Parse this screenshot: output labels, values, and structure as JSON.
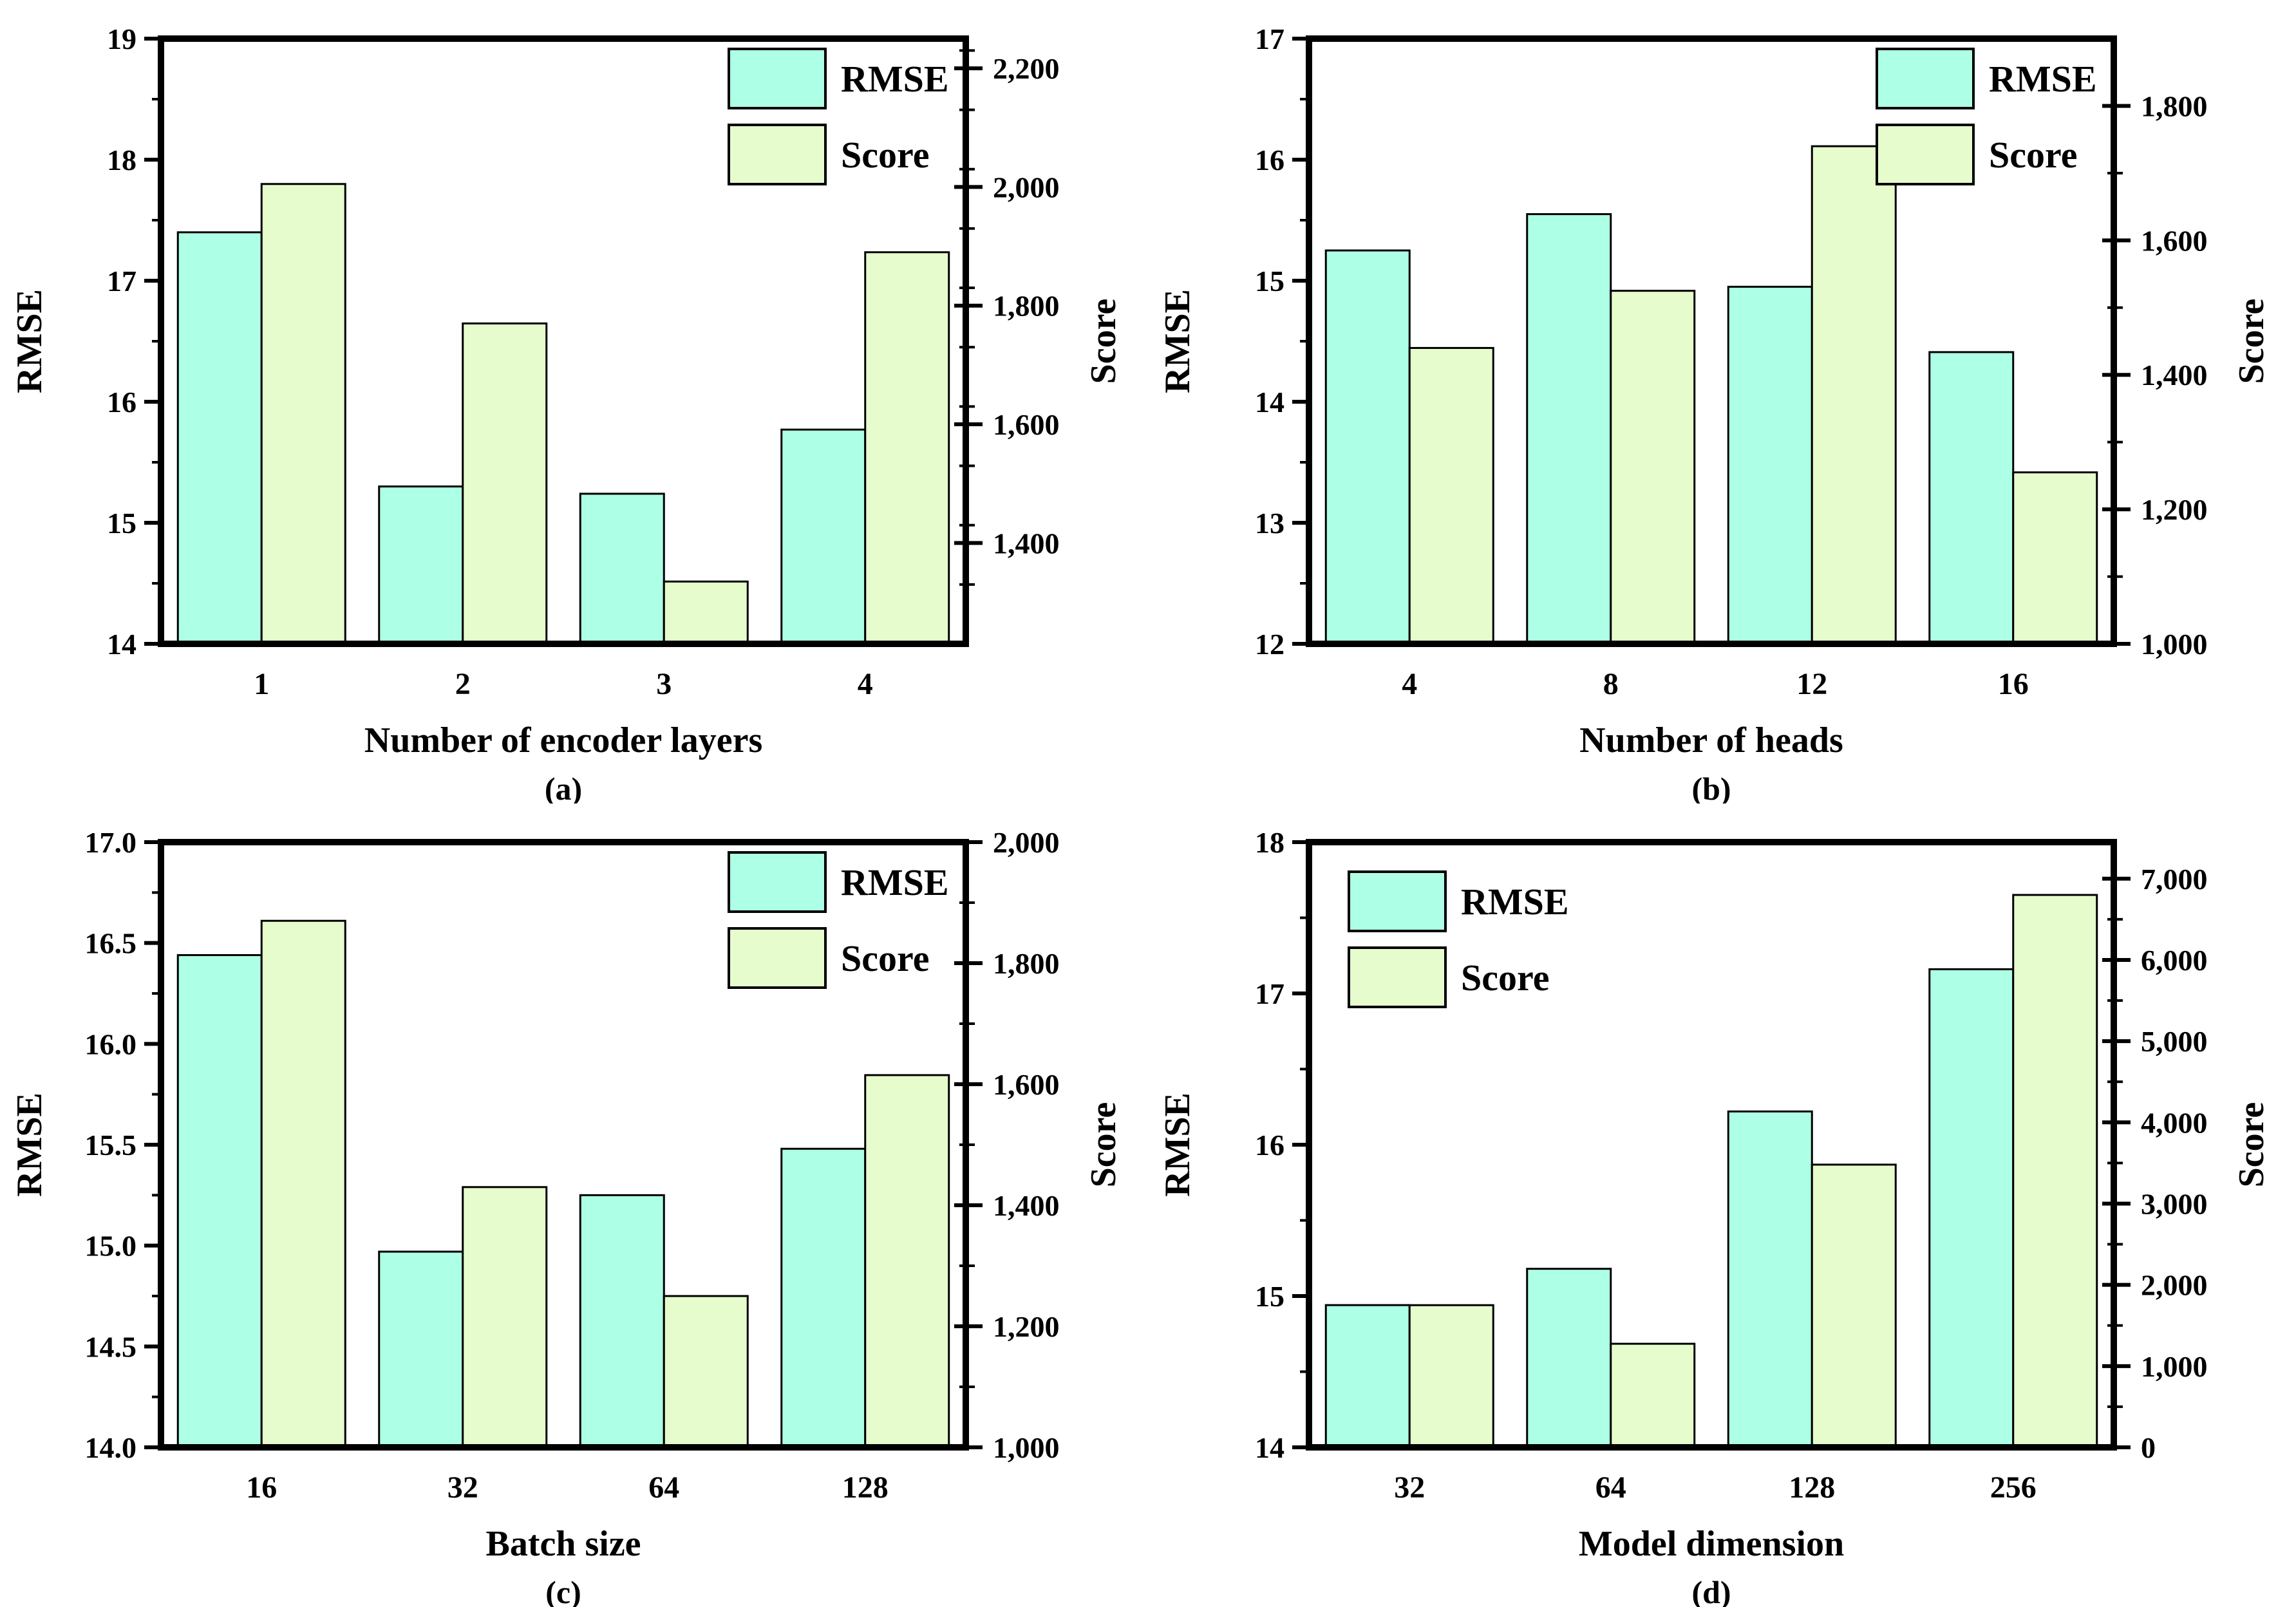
{
  "figure": {
    "background": "#ffffff",
    "colors": {
      "rmse_fill": "#adffe6",
      "score_fill": "#e6fccd",
      "bar_stroke": "#000000",
      "frame": "#000000",
      "text": "#000000"
    },
    "legend": {
      "rmse_label": "RMSE",
      "score_label": "Score"
    }
  },
  "chart_data": [
    {
      "id": "a",
      "type": "bar",
      "panel_label": "(a)",
      "xlabel": "Number of encoder layers",
      "categories": [
        "1",
        "2",
        "3",
        "4"
      ],
      "series": [
        {
          "name": "RMSE",
          "axis": "left",
          "values": [
            17.4,
            15.3,
            15.24,
            15.77
          ]
        },
        {
          "name": "Score",
          "axis": "right",
          "values": [
            2005,
            1770,
            1335,
            1890
          ]
        }
      ],
      "left_axis": {
        "title": "RMSE",
        "min": 14,
        "max": 19,
        "ticks": [
          14,
          15,
          16,
          17,
          18,
          19
        ],
        "tick_labels": [
          "14",
          "15",
          "16",
          "17",
          "18",
          "19"
        ],
        "minor_step": 0.5
      },
      "right_axis": {
        "title": "Score",
        "min": 1230,
        "max": 2250,
        "ticks": [
          1400,
          1600,
          1800,
          2000,
          2200
        ],
        "tick_labels": [
          "1,400",
          "1,600",
          "1,800",
          "2,000",
          "2,200"
        ],
        "minor_step": 100
      },
      "legend_pos": "top-right",
      "grid": "off"
    },
    {
      "id": "b",
      "type": "bar",
      "panel_label": "(b)",
      "xlabel": "Number of heads",
      "categories": [
        "4",
        "8",
        "12",
        "16"
      ],
      "series": [
        {
          "name": "RMSE",
          "axis": "left",
          "values": [
            15.25,
            15.55,
            14.95,
            14.41
          ]
        },
        {
          "name": "Score",
          "axis": "right",
          "values": [
            1440,
            1525,
            1740,
            1255
          ]
        }
      ],
      "left_axis": {
        "title": "RMSE",
        "min": 12,
        "max": 17,
        "ticks": [
          12,
          13,
          14,
          15,
          16,
          17
        ],
        "tick_labels": [
          "12",
          "13",
          "14",
          "15",
          "16",
          "17"
        ],
        "minor_step": 0.5
      },
      "right_axis": {
        "title": "Score",
        "min": 1000,
        "max": 1900,
        "ticks": [
          1000,
          1200,
          1400,
          1600,
          1800
        ],
        "tick_labels": [
          "1,000",
          "1,200",
          "1,400",
          "1,600",
          "1,800"
        ],
        "minor_step": 100
      },
      "legend_pos": "top-right",
      "grid": "off"
    },
    {
      "id": "c",
      "type": "bar",
      "panel_label": "(c)",
      "xlabel": "Batch size",
      "categories": [
        "16",
        "32",
        "64",
        "128"
      ],
      "series": [
        {
          "name": "RMSE",
          "axis": "left",
          "values": [
            16.44,
            14.97,
            15.25,
            15.48
          ]
        },
        {
          "name": "Score",
          "axis": "right",
          "values": [
            1870,
            1430,
            1250,
            1615
          ]
        }
      ],
      "left_axis": {
        "title": "RMSE",
        "min": 14,
        "max": 17,
        "ticks": [
          14,
          14.5,
          15,
          15.5,
          16,
          16.5,
          17
        ],
        "tick_labels": [
          "14.0",
          "14.5",
          "15.0",
          "15.5",
          "16.0",
          "16.5",
          "17.0"
        ],
        "minor_step": 0.25
      },
      "right_axis": {
        "title": "Score",
        "min": 1000,
        "max": 2000,
        "ticks": [
          1000,
          1200,
          1400,
          1600,
          1800,
          2000
        ],
        "tick_labels": [
          "1,000",
          "1,200",
          "1,400",
          "1,600",
          "1,800",
          "2,000"
        ],
        "minor_step": 100
      },
      "legend_pos": "top-right",
      "grid": "off"
    },
    {
      "id": "d",
      "type": "bar",
      "panel_label": "(d)",
      "xlabel": "Model dimension",
      "categories": [
        "32",
        "64",
        "128",
        "256"
      ],
      "series": [
        {
          "name": "RMSE",
          "axis": "left",
          "values": [
            14.94,
            15.18,
            16.22,
            17.16
          ]
        },
        {
          "name": "Score",
          "axis": "right",
          "values": [
            1750,
            1275,
            3480,
            6800
          ]
        }
      ],
      "left_axis": {
        "title": "RMSE",
        "min": 14,
        "max": 18,
        "ticks": [
          14,
          15,
          16,
          17,
          18
        ],
        "tick_labels": [
          "14",
          "15",
          "16",
          "17",
          "18"
        ],
        "minor_step": 0.5
      },
      "right_axis": {
        "title": "Score",
        "min": 0,
        "max": 7450,
        "ticks": [
          0,
          1000,
          2000,
          3000,
          4000,
          5000,
          6000,
          7000
        ],
        "tick_labels": [
          "0",
          "1,000",
          "2,000",
          "3,000",
          "4,000",
          "5,000",
          "6,000",
          "7,000"
        ],
        "minor_step": 500
      },
      "legend_pos": "top-left",
      "grid": "off"
    }
  ]
}
